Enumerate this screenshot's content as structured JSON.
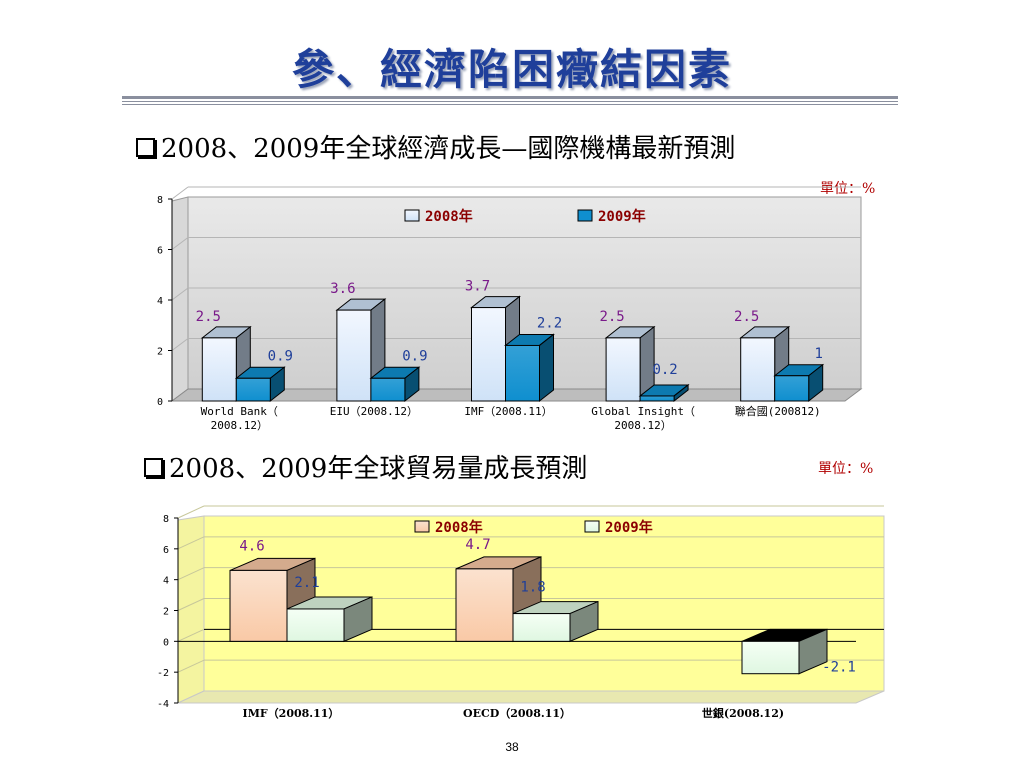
{
  "title": "參、經濟陷困癥結因素",
  "page_number": "38",
  "section1": {
    "heading": "2008、2009年全球經濟成長—國際機構最新預測",
    "unit": "單位：%"
  },
  "section2": {
    "heading": "2008、2009年全球貿易量成長預測",
    "unit": "單位：%"
  },
  "colors": {
    "title": "#1f3f9a",
    "c1_2008": "#cfe2f7",
    "c1_2009": "#0f8fcf",
    "c2_2008": "#f9c9a6",
    "c2_2009": "#dff7e1",
    "c2_plot": "#ffff9a",
    "legend_2008": "#8b0000",
    "legend_2009": "#8b0000"
  },
  "chart_data": [
    {
      "type": "bar",
      "categories": [
        [
          "World Bank（",
          "2008.12）"
        ],
        [
          "EIU（2008.12）"
        ],
        [
          "IMF（2008.11）"
        ],
        [
          "Global Insight（",
          "2008.12）"
        ],
        [
          "聯合國(200812)"
        ]
      ],
      "series": [
        {
          "name": "2008年",
          "values": [
            2.5,
            3.6,
            3.7,
            2.5,
            2.5
          ],
          "labels": [
            "2.5",
            "3.6",
            "3.7",
            "2.5",
            "2.5"
          ]
        },
        {
          "name": "2009年",
          "values": [
            0.9,
            0.9,
            2.2,
            0.2,
            1
          ],
          "labels": [
            "0.9",
            "0.9",
            "2.2",
            "0.2",
            "1"
          ]
        }
      ],
      "ylim": [
        0,
        8
      ],
      "yticks": [
        0,
        2,
        4,
        6,
        8
      ],
      "legend": "top-center",
      "grid": true
    },
    {
      "type": "bar",
      "categories": [
        [
          "IMF（2008.11）"
        ],
        [
          "OECD（2008.11）"
        ],
        [
          "世銀(2008.12)"
        ]
      ],
      "series": [
        {
          "name": "2008年",
          "values": [
            4.6,
            4.7,
            null
          ],
          "labels": [
            "4.6",
            "4.7",
            ""
          ]
        },
        {
          "name": "2009年",
          "values": [
            2.1,
            1.8,
            -2.1
          ],
          "labels": [
            "2.1",
            "1.8",
            "-2.1"
          ]
        }
      ],
      "ylim": [
        -4,
        8
      ],
      "yticks": [
        -4,
        -2,
        0,
        2,
        4,
        6,
        8
      ],
      "legend": "top-center",
      "grid": true
    }
  ]
}
